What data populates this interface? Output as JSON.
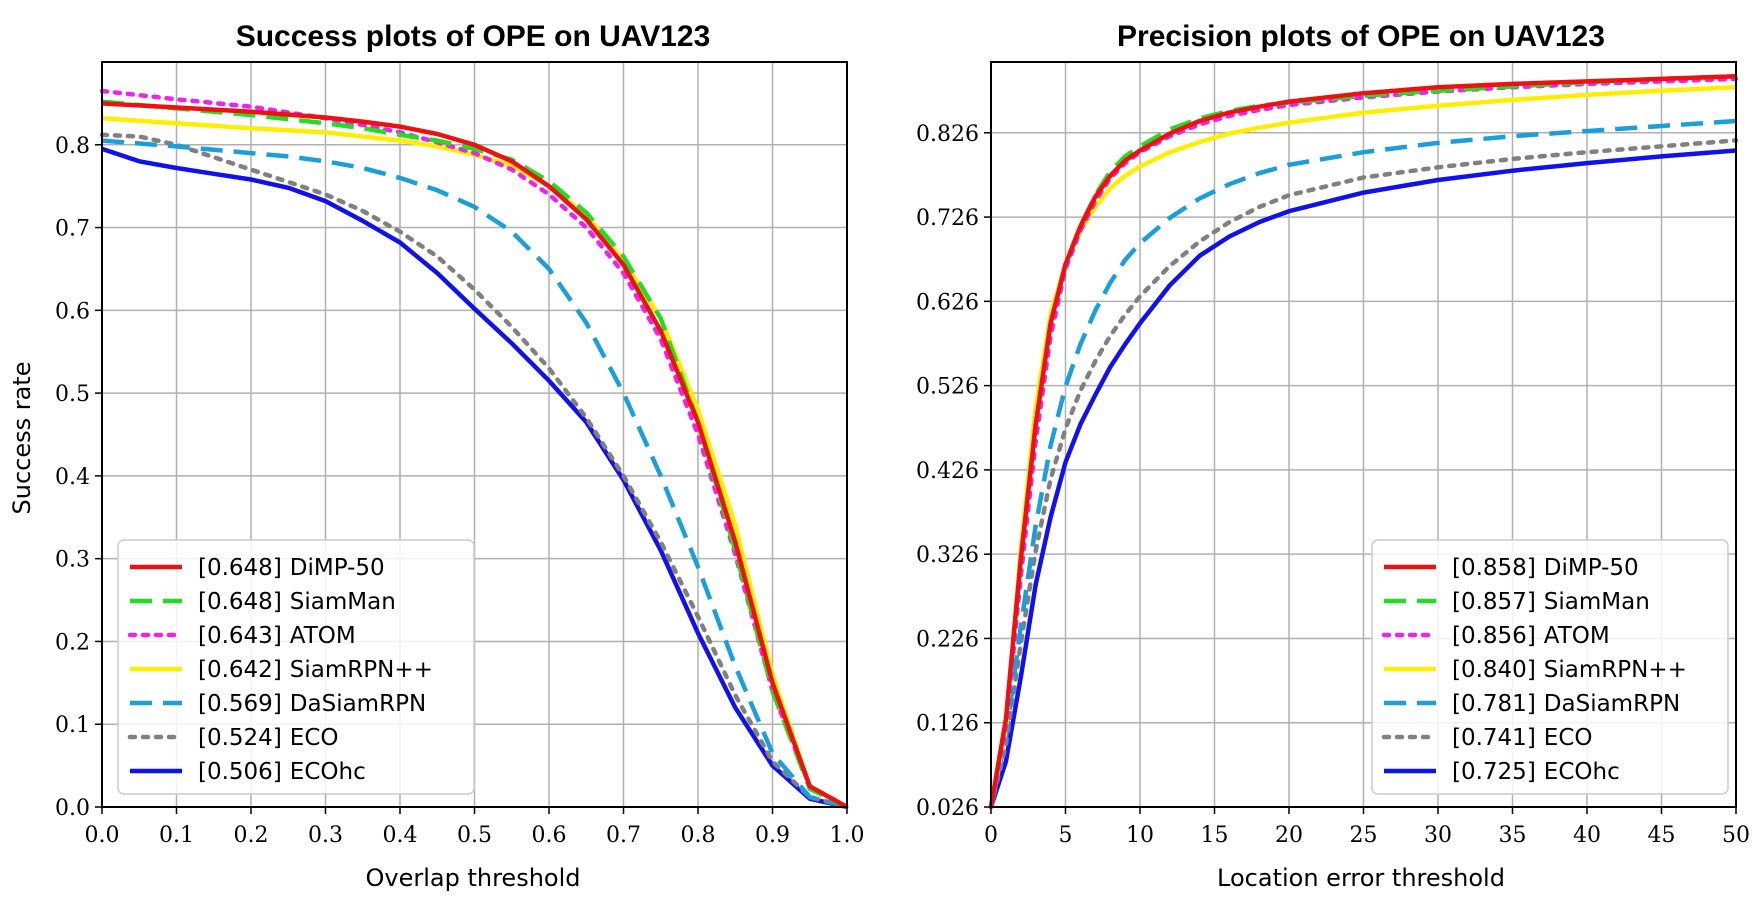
{
  "chart_data": [
    {
      "type": "line",
      "title": "Success plots of OPE on UAV123",
      "xlabel": "Overlap threshold",
      "ylabel": "Success rate",
      "xlim": [
        0,
        1
      ],
      "ylim": [
        0,
        0.9
      ],
      "xticks": [
        0,
        0.1,
        0.2,
        0.3,
        0.4,
        0.5,
        0.6,
        0.7,
        0.8,
        0.9,
        1.0
      ],
      "xtick_labels": [
        "0.0",
        "0.1",
        "0.2",
        "0.3",
        "0.4",
        "0.5",
        "0.6",
        "0.7",
        "0.8",
        "0.9",
        "1.0"
      ],
      "yticks": [
        0,
        0.1,
        0.2,
        0.3,
        0.4,
        0.5,
        0.6,
        0.7,
        0.8
      ],
      "ytick_labels": [
        "0.0",
        "0.1",
        "0.2",
        "0.3",
        "0.4",
        "0.5",
        "0.6",
        "0.7",
        "0.8"
      ],
      "grid": true,
      "legend_position": "bottom-left",
      "series": [
        {
          "name": "DiMP-50",
          "score": "[0.648]",
          "color": "#ee1111",
          "dash": "solid",
          "x": [
            0,
            0.1,
            0.2,
            0.3,
            0.35,
            0.4,
            0.45,
            0.5,
            0.55,
            0.6,
            0.65,
            0.7,
            0.75,
            0.8,
            0.85,
            0.9,
            0.95,
            1.0
          ],
          "y": [
            0.85,
            0.845,
            0.84,
            0.833,
            0.828,
            0.822,
            0.813,
            0.8,
            0.78,
            0.75,
            0.71,
            0.655,
            0.575,
            0.465,
            0.32,
            0.15,
            0.025,
            0.0
          ]
        },
        {
          "name": "SiamMan",
          "score": "[0.648]",
          "color": "#22dd22",
          "dash": "dashed",
          "x": [
            0,
            0.1,
            0.2,
            0.3,
            0.35,
            0.4,
            0.45,
            0.5,
            0.55,
            0.6,
            0.65,
            0.7,
            0.75,
            0.8,
            0.85,
            0.9,
            0.95,
            1.0
          ],
          "y": [
            0.852,
            0.844,
            0.836,
            0.826,
            0.82,
            0.812,
            0.805,
            0.795,
            0.782,
            0.756,
            0.718,
            0.665,
            0.59,
            0.465,
            0.31,
            0.14,
            0.022,
            0.0
          ]
        },
        {
          "name": "ATOM",
          "score": "[0.643]",
          "color": "#ee22ee",
          "dash": "dotted",
          "x": [
            0,
            0.1,
            0.2,
            0.3,
            0.35,
            0.4,
            0.45,
            0.5,
            0.55,
            0.6,
            0.65,
            0.7,
            0.75,
            0.8,
            0.85,
            0.9,
            0.95,
            1.0
          ],
          "y": [
            0.865,
            0.855,
            0.846,
            0.832,
            0.824,
            0.815,
            0.803,
            0.79,
            0.77,
            0.74,
            0.7,
            0.645,
            0.565,
            0.45,
            0.305,
            0.14,
            0.025,
            0.0
          ]
        },
        {
          "name": "SiamRPN++",
          "score": "[0.642]",
          "color": "#ffee00",
          "dash": "solid",
          "x": [
            0,
            0.1,
            0.2,
            0.3,
            0.35,
            0.4,
            0.45,
            0.5,
            0.55,
            0.6,
            0.65,
            0.7,
            0.75,
            0.8,
            0.85,
            0.9,
            0.95,
            1.0
          ],
          "y": [
            0.832,
            0.826,
            0.82,
            0.815,
            0.81,
            0.805,
            0.798,
            0.788,
            0.775,
            0.75,
            0.715,
            0.66,
            0.59,
            0.48,
            0.34,
            0.16,
            0.025,
            0.0
          ]
        },
        {
          "name": "DaSiamRPN",
          "score": "[0.569]",
          "color": "#1a9fdb",
          "dash": "dashed",
          "x": [
            0,
            0.1,
            0.2,
            0.25,
            0.3,
            0.35,
            0.4,
            0.45,
            0.5,
            0.55,
            0.6,
            0.65,
            0.7,
            0.75,
            0.8,
            0.85,
            0.9,
            0.95,
            1.0
          ],
          "y": [
            0.805,
            0.798,
            0.79,
            0.786,
            0.78,
            0.772,
            0.76,
            0.745,
            0.725,
            0.695,
            0.65,
            0.585,
            0.5,
            0.4,
            0.29,
            0.17,
            0.065,
            0.012,
            0.0
          ]
        },
        {
          "name": "ECO",
          "score": "[0.524]",
          "color": "#808080",
          "dash": "dotted",
          "x": [
            0,
            0.05,
            0.1,
            0.15,
            0.2,
            0.25,
            0.3,
            0.35,
            0.4,
            0.45,
            0.5,
            0.55,
            0.6,
            0.65,
            0.7,
            0.75,
            0.8,
            0.85,
            0.9,
            0.95,
            1.0
          ],
          "y": [
            0.812,
            0.81,
            0.8,
            0.785,
            0.77,
            0.755,
            0.74,
            0.72,
            0.695,
            0.665,
            0.625,
            0.58,
            0.53,
            0.47,
            0.4,
            0.32,
            0.23,
            0.135,
            0.055,
            0.012,
            0.0
          ]
        },
        {
          "name": "ECOhc",
          "score": "[0.506]",
          "color": "#1111ee",
          "dash": "solid",
          "x": [
            0,
            0.05,
            0.1,
            0.15,
            0.2,
            0.25,
            0.3,
            0.35,
            0.4,
            0.45,
            0.5,
            0.55,
            0.6,
            0.65,
            0.7,
            0.75,
            0.8,
            0.85,
            0.9,
            0.95,
            1.0
          ],
          "y": [
            0.795,
            0.78,
            0.772,
            0.765,
            0.758,
            0.748,
            0.732,
            0.708,
            0.682,
            0.645,
            0.602,
            0.56,
            0.515,
            0.465,
            0.395,
            0.31,
            0.21,
            0.12,
            0.05,
            0.01,
            0.0
          ]
        }
      ]
    },
    {
      "type": "line",
      "title": "Precision plots of OPE on UAV123",
      "xlabel": "Location error threshold",
      "ylabel": "",
      "xlim": [
        0,
        50
      ],
      "ylim": [
        0.026,
        0.91
      ],
      "xticks": [
        0,
        5,
        10,
        15,
        20,
        25,
        30,
        35,
        40,
        45,
        50
      ],
      "xtick_labels": [
        "0",
        "5",
        "10",
        "15",
        "20",
        "25",
        "30",
        "35",
        "40",
        "45",
        "50"
      ],
      "yticks": [
        0.026,
        0.126,
        0.226,
        0.326,
        0.426,
        0.526,
        0.626,
        0.726,
        0.826
      ],
      "ytick_labels": [
        "0.026",
        "0.126",
        "0.226",
        "0.326",
        "0.426",
        "0.526",
        "0.626",
        "0.726",
        "0.826"
      ],
      "grid": true,
      "legend_position": "bottom-right",
      "series": [
        {
          "name": "DiMP-50",
          "score": "[0.858]",
          "color": "#ee1111",
          "dash": "solid",
          "x": [
            0,
            1,
            2,
            3,
            4,
            5,
            6,
            7,
            8,
            9,
            10,
            12,
            14,
            16,
            18,
            20,
            25,
            30,
            35,
            40,
            45,
            50
          ],
          "y": [
            0.026,
            0.13,
            0.32,
            0.48,
            0.6,
            0.67,
            0.715,
            0.75,
            0.775,
            0.793,
            0.805,
            0.825,
            0.84,
            0.85,
            0.857,
            0.863,
            0.873,
            0.88,
            0.884,
            0.887,
            0.89,
            0.893
          ]
        },
        {
          "name": "SiamMan",
          "score": "[0.857]",
          "color": "#22dd22",
          "dash": "dashed",
          "x": [
            0,
            1,
            2,
            3,
            4,
            5,
            6,
            7,
            8,
            9,
            10,
            12,
            14,
            16,
            18,
            20,
            25,
            30,
            35,
            40,
            45,
            50
          ],
          "y": [
            0.026,
            0.13,
            0.32,
            0.48,
            0.6,
            0.67,
            0.715,
            0.752,
            0.78,
            0.798,
            0.81,
            0.83,
            0.843,
            0.852,
            0.858,
            0.862,
            0.87,
            0.876,
            0.881,
            0.886,
            0.89,
            0.893
          ]
        },
        {
          "name": "ATOM",
          "score": "[0.856]",
          "color": "#ee22ee",
          "dash": "dotted",
          "x": [
            0,
            1,
            2,
            3,
            4,
            5,
            6,
            7,
            8,
            9,
            10,
            12,
            14,
            16,
            18,
            20,
            25,
            30,
            35,
            40,
            45,
            50
          ],
          "y": [
            0.026,
            0.12,
            0.3,
            0.46,
            0.585,
            0.665,
            0.71,
            0.745,
            0.772,
            0.79,
            0.803,
            0.822,
            0.836,
            0.846,
            0.853,
            0.859,
            0.868,
            0.875,
            0.88,
            0.884,
            0.887,
            0.89
          ]
        },
        {
          "name": "SiamRPN++",
          "score": "[0.840]",
          "color": "#ffee00",
          "dash": "solid",
          "x": [
            0,
            1,
            2,
            3,
            4,
            5,
            6,
            7,
            8,
            9,
            10,
            12,
            14,
            16,
            18,
            20,
            25,
            30,
            35,
            40,
            45,
            50
          ],
          "y": [
            0.026,
            0.12,
            0.33,
            0.5,
            0.61,
            0.67,
            0.71,
            0.738,
            0.76,
            0.775,
            0.786,
            0.803,
            0.815,
            0.825,
            0.832,
            0.838,
            0.85,
            0.858,
            0.865,
            0.871,
            0.876,
            0.88
          ]
        },
        {
          "name": "DaSiamRPN",
          "score": "[0.781]",
          "color": "#1a9fdb",
          "dash": "dashed",
          "x": [
            0,
            1,
            2,
            3,
            4,
            5,
            6,
            7,
            8,
            9,
            10,
            12,
            14,
            16,
            18,
            20,
            25,
            30,
            35,
            40,
            45,
            50
          ],
          "y": [
            0.026,
            0.11,
            0.24,
            0.36,
            0.455,
            0.525,
            0.575,
            0.615,
            0.648,
            0.675,
            0.695,
            0.725,
            0.748,
            0.765,
            0.778,
            0.788,
            0.803,
            0.814,
            0.822,
            0.828,
            0.834,
            0.84
          ]
        },
        {
          "name": "ECO",
          "score": "[0.741]",
          "color": "#808080",
          "dash": "dotted",
          "x": [
            0,
            1,
            2,
            3,
            4,
            5,
            6,
            7,
            8,
            9,
            10,
            12,
            14,
            16,
            18,
            20,
            25,
            30,
            35,
            40,
            45,
            50
          ],
          "y": [
            0.026,
            0.1,
            0.22,
            0.33,
            0.415,
            0.475,
            0.52,
            0.555,
            0.585,
            0.61,
            0.632,
            0.668,
            0.697,
            0.72,
            0.738,
            0.752,
            0.773,
            0.785,
            0.795,
            0.803,
            0.81,
            0.817
          ]
        },
        {
          "name": "ECOhc",
          "score": "[0.725]",
          "color": "#1111ee",
          "dash": "solid",
          "x": [
            0,
            1,
            2,
            3,
            4,
            5,
            6,
            7,
            8,
            9,
            10,
            12,
            14,
            16,
            18,
            20,
            25,
            30,
            35,
            40,
            45,
            50
          ],
          "y": [
            0.026,
            0.08,
            0.18,
            0.29,
            0.37,
            0.435,
            0.48,
            0.515,
            0.548,
            0.575,
            0.6,
            0.645,
            0.68,
            0.703,
            0.72,
            0.733,
            0.755,
            0.77,
            0.781,
            0.79,
            0.798,
            0.805
          ]
        }
      ]
    }
  ]
}
